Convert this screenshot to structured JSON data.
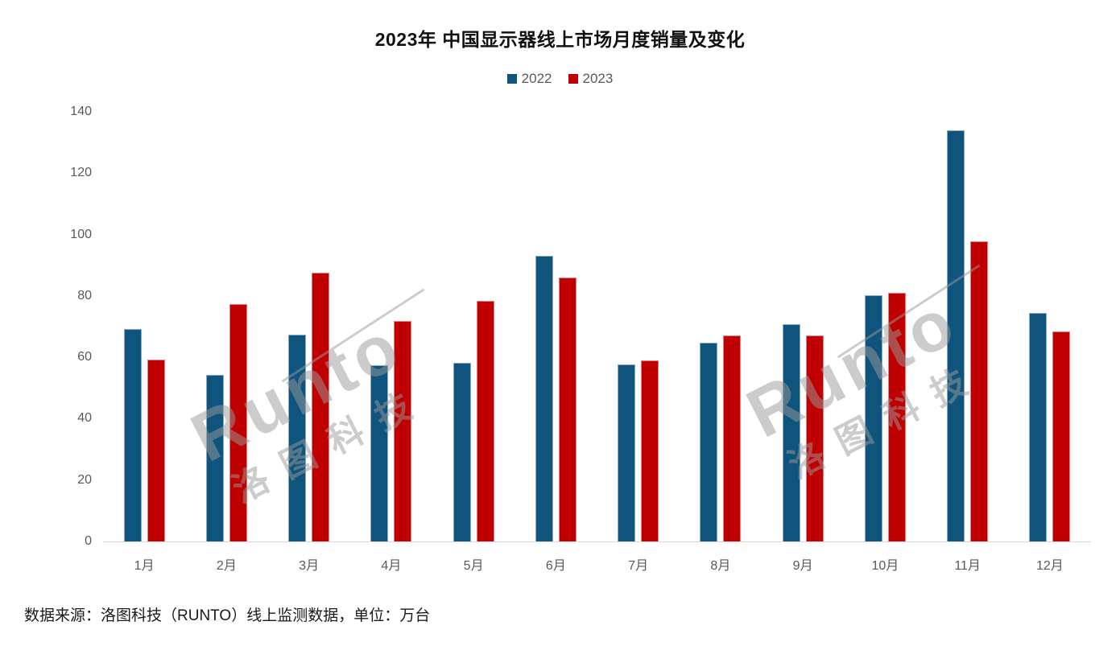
{
  "title": "2023年 中国显示器线上市场月度销量及变化",
  "source_note": "数据来源：洛图科技（RUNTO）线上监测数据，单位：万台",
  "watermark": {
    "latin": "Runto",
    "cn": "洛图科技"
  },
  "chart_data": {
    "type": "bar",
    "title": "2023年 中国显示器线上市场月度销量及变化",
    "unit": "万台",
    "categories": [
      "1月",
      "2月",
      "3月",
      "4月",
      "5月",
      "6月",
      "7月",
      "8月",
      "9月",
      "10月",
      "11月",
      "12月"
    ],
    "series": [
      {
        "name": "2022",
        "color": "#0F547D",
        "values": [
          69.3,
          54.4,
          67.4,
          57.5,
          58.3,
          93.1,
          57.6,
          64.7,
          70.7,
          80.1,
          134.0,
          74.5
        ]
      },
      {
        "name": "2023",
        "color": "#C00000",
        "values": [
          59.2,
          77.3,
          87.5,
          71.8,
          78.3,
          85.9,
          58.9,
          67.2,
          67.2,
          81.1,
          97.9,
          68.4
        ]
      }
    ],
    "xlabel": "",
    "ylabel": "",
    "ylim": [
      0,
      140
    ],
    "yticks": [
      0,
      20,
      40,
      60,
      80,
      100,
      120,
      140
    ],
    "grid": false,
    "legend_position": "top-center"
  }
}
